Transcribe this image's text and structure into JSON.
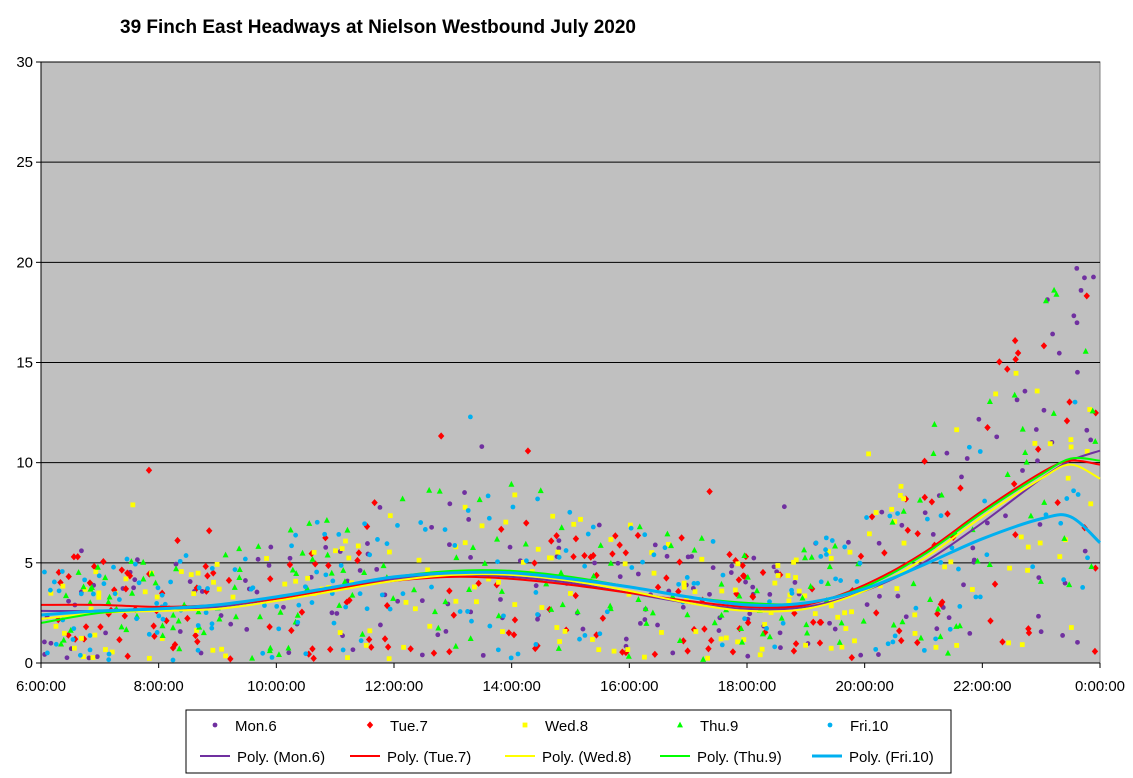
{
  "chart_data": {
    "type": "scatter",
    "title": "39 Finch East Headways at Nielson Westbound July 2020",
    "xlabel": "",
    "ylabel": "",
    "x_ticks": [
      "6:00:00",
      "8:00:00",
      "10:00:00",
      "12:00:00",
      "14:00:00",
      "16:00:00",
      "18:00:00",
      "20:00:00",
      "22:00:00",
      "0:00:00"
    ],
    "xlim_hours": [
      6,
      24
    ],
    "y_ticks": [
      "0",
      "5",
      "10",
      "15",
      "20",
      "25",
      "30"
    ],
    "ylim": [
      0,
      30
    ],
    "grid": "horizontal",
    "plot_background": "#c0c0c0",
    "legend_position": "bottom",
    "series": [
      {
        "name": "Mon.6",
        "marker": "circle",
        "color": "#7030a0",
        "seed": 11
      },
      {
        "name": "Tue.7",
        "marker": "diamond",
        "color": "#ff0000",
        "seed": 23
      },
      {
        "name": "Wed.8",
        "marker": "square",
        "color": "#ffff00",
        "seed": 37
      },
      {
        "name": "Thu.9",
        "marker": "triangle",
        "color": "#00ff00",
        "seed": 41
      },
      {
        "name": "Fri.10",
        "marker": "circle",
        "color": "#00b0f0",
        "seed": 59
      }
    ],
    "trendlines": [
      {
        "name": "Poly. (Mon.6)",
        "color": "#7030a0",
        "width": 2,
        "points": [
          [
            6,
            2.6
          ],
          [
            7,
            2.6
          ],
          [
            8,
            2.7
          ],
          [
            9,
            2.8
          ],
          [
            10,
            3.2
          ],
          [
            11,
            3.7
          ],
          [
            12,
            4.2
          ],
          [
            13,
            4.4
          ],
          [
            14,
            4.3
          ],
          [
            15,
            4.0
          ],
          [
            16,
            3.5
          ],
          [
            17,
            3.0
          ],
          [
            18,
            2.7
          ],
          [
            19,
            2.8
          ],
          [
            20,
            3.6
          ],
          [
            21,
            5.0
          ],
          [
            22,
            7.0
          ],
          [
            23,
            9.2
          ],
          [
            23.5,
            10.1
          ],
          [
            24,
            10.6
          ]
        ]
      },
      {
        "name": "Poly. (Tue.7)",
        "color": "#ff0000",
        "width": 2,
        "points": [
          [
            6,
            2.9
          ],
          [
            7,
            2.9
          ],
          [
            8,
            2.8
          ],
          [
            9,
            2.9
          ],
          [
            10,
            3.2
          ],
          [
            11,
            3.7
          ],
          [
            12,
            4.1
          ],
          [
            13,
            4.3
          ],
          [
            14,
            4.2
          ],
          [
            15,
            3.9
          ],
          [
            16,
            3.5
          ],
          [
            17,
            3.1
          ],
          [
            18,
            2.8
          ],
          [
            19,
            2.9
          ],
          [
            20,
            3.9
          ],
          [
            21,
            5.5
          ],
          [
            22,
            7.6
          ],
          [
            23,
            9.5
          ],
          [
            23.5,
            10.1
          ],
          [
            24,
            9.9
          ]
        ]
      },
      {
        "name": "Poly. (Wed.8)",
        "color": "#ffff00",
        "width": 2,
        "points": [
          [
            6,
            2.2
          ],
          [
            7,
            2.5
          ],
          [
            8,
            2.6
          ],
          [
            9,
            2.7
          ],
          [
            10,
            3.1
          ],
          [
            11,
            3.6
          ],
          [
            12,
            4.1
          ],
          [
            13,
            4.4
          ],
          [
            14,
            4.4
          ],
          [
            15,
            4.1
          ],
          [
            16,
            3.6
          ],
          [
            17,
            3.0
          ],
          [
            18,
            2.6
          ],
          [
            19,
            2.7
          ],
          [
            20,
            3.6
          ],
          [
            21,
            5.2
          ],
          [
            22,
            7.3
          ],
          [
            23,
            9.2
          ],
          [
            23.5,
            9.9
          ],
          [
            24,
            9.2
          ]
        ]
      },
      {
        "name": "Poly. (Thu.9)",
        "color": "#00ff00",
        "width": 2,
        "points": [
          [
            6,
            2.0
          ],
          [
            7,
            2.5
          ],
          [
            8,
            2.7
          ],
          [
            9,
            2.9
          ],
          [
            10,
            3.3
          ],
          [
            11,
            3.8
          ],
          [
            12,
            4.3
          ],
          [
            13,
            4.6
          ],
          [
            14,
            4.6
          ],
          [
            15,
            4.3
          ],
          [
            16,
            3.8
          ],
          [
            17,
            3.3
          ],
          [
            18,
            3.0
          ],
          [
            19,
            3.0
          ],
          [
            20,
            3.8
          ],
          [
            21,
            5.4
          ],
          [
            22,
            7.5
          ],
          [
            23,
            9.4
          ],
          [
            23.5,
            10.2
          ],
          [
            24,
            10.1
          ]
        ]
      },
      {
        "name": "Poly. (Fri.10)",
        "color": "#00b0f0",
        "width": 3,
        "points": [
          [
            6,
            2.4
          ],
          [
            7,
            2.6
          ],
          [
            8,
            2.7
          ],
          [
            9,
            2.9
          ],
          [
            10,
            3.3
          ],
          [
            11,
            3.8
          ],
          [
            12,
            4.3
          ],
          [
            13,
            4.5
          ],
          [
            14,
            4.5
          ],
          [
            15,
            4.2
          ],
          [
            16,
            3.8
          ],
          [
            17,
            3.3
          ],
          [
            18,
            2.9
          ],
          [
            19,
            3.0
          ],
          [
            20,
            3.7
          ],
          [
            21,
            4.9
          ],
          [
            22,
            6.2
          ],
          [
            23,
            7.2
          ],
          [
            23.5,
            7.3
          ],
          [
            24,
            6.0
          ]
        ]
      }
    ]
  }
}
